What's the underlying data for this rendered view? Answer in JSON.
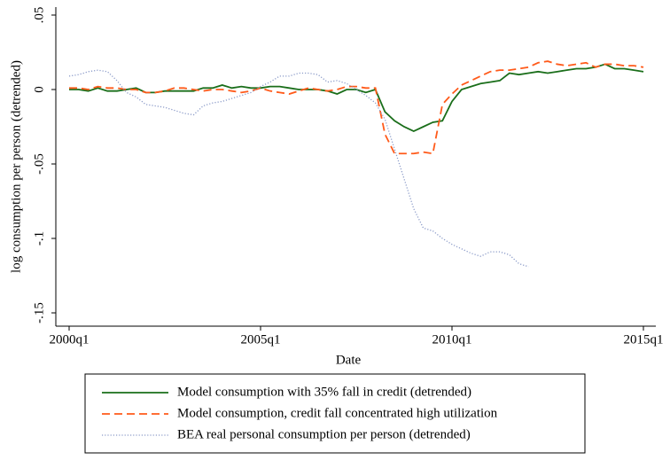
{
  "chart_data": {
    "type": "line",
    "x_label": "Date",
    "y_label": "log consumption per person (detrended)",
    "x": [
      "2000q1",
      "2000q2",
      "2000q3",
      "2000q4",
      "2001q1",
      "2001q2",
      "2001q3",
      "2001q4",
      "2002q1",
      "2002q2",
      "2002q3",
      "2002q4",
      "2003q1",
      "2003q2",
      "2003q3",
      "2003q4",
      "2004q1",
      "2004q2",
      "2004q3",
      "2004q4",
      "2005q1",
      "2005q2",
      "2005q3",
      "2005q4",
      "2006q1",
      "2006q2",
      "2006q3",
      "2006q4",
      "2007q1",
      "2007q2",
      "2007q3",
      "2007q4",
      "2008q1",
      "2008q2",
      "2008q3",
      "2008q4",
      "2009q1",
      "2009q2",
      "2009q3",
      "2009q4",
      "2010q1",
      "2010q2",
      "2010q3",
      "2010q4",
      "2011q1",
      "2011q2",
      "2011q3",
      "2011q4",
      "2012q1",
      "2012q2",
      "2012q3",
      "2012q4",
      "2013q1",
      "2013q2",
      "2013q3",
      "2013q4",
      "2014q1",
      "2014q2",
      "2014q3",
      "2014q4",
      "2015q1"
    ],
    "xlim": [
      "2000q1",
      "2015q1"
    ],
    "xticks": [
      "2000q1",
      "2005q1",
      "2010q1",
      "2015q1"
    ],
    "ylim": [
      -0.15,
      0.05
    ],
    "yticks": [
      {
        "value": -0.15,
        "label": "-.15"
      },
      {
        "value": -0.1,
        "label": "-.1"
      },
      {
        "value": -0.05,
        "label": "-.05"
      },
      0,
      {
        "value": 0.05,
        "label": ".05"
      }
    ],
    "series": [
      {
        "name": "Model consumption with 35% fall in credit (detrended)",
        "color": "#1a6e1a",
        "dash": "solid",
        "values": [
          0,
          0,
          -0.001,
          0.001,
          -0.001,
          -0.001,
          0,
          0.001,
          -0.002,
          -0.002,
          -0.001,
          -0.001,
          -0.001,
          -0.001,
          0.001,
          0.001,
          0.003,
          0.001,
          0.002,
          0.001,
          0.001,
          0.002,
          0.002,
          0.001,
          0,
          0,
          0,
          -0.001,
          -0.003,
          0,
          0,
          -0.002,
          0,
          -0.015,
          -0.021,
          -0.025,
          -0.028,
          -0.025,
          -0.022,
          -0.021,
          -0.008,
          0,
          0.002,
          0.004,
          0.005,
          0.006,
          0.011,
          0.01,
          0.011,
          0.012,
          0.011,
          0.012,
          0.013,
          0.014,
          0.014,
          0.015,
          0.017,
          0.014,
          0.014,
          0.013,
          0.012
        ]
      },
      {
        "name": "Model consumption, credit fall concentrated high utilization",
        "color": "#ff5a1a",
        "dash": "dashed",
        "values": [
          0.001,
          0.001,
          0,
          0.002,
          0.001,
          0.001,
          0,
          0,
          -0.002,
          -0.002,
          -0.001,
          0.001,
          0.001,
          0,
          -0.001,
          0,
          0,
          -0.001,
          -0.002,
          -0.001,
          0.001,
          -0.001,
          -0.002,
          -0.003,
          -0.001,
          0.001,
          0,
          -0.001,
          0,
          0.002,
          0.002,
          0.001,
          0.001,
          -0.03,
          -0.043,
          -0.043,
          -0.043,
          -0.042,
          -0.043,
          -0.01,
          -0.003,
          0.003,
          0.006,
          0.009,
          0.012,
          0.013,
          0.013,
          0.014,
          0.015,
          0.018,
          0.019,
          0.017,
          0.016,
          0.017,
          0.018,
          0.015,
          0.017,
          0.017,
          0.016,
          0.016,
          0.015
        ]
      },
      {
        "name": "BEA real personal consumption per person (detrended)",
        "color": "#8a9ac8",
        "dash": "dotted",
        "values": [
          0.009,
          0.01,
          0.012,
          0.013,
          0.012,
          0.006,
          -0.002,
          -0.005,
          -0.01,
          -0.011,
          -0.012,
          -0.014,
          -0.016,
          -0.017,
          -0.011,
          -0.009,
          -0.008,
          -0.006,
          -0.004,
          -0.002,
          0.002,
          0.005,
          0.009,
          0.009,
          0.011,
          0.011,
          0.01,
          0.005,
          0.006,
          0.004,
          0,
          -0.004,
          -0.009,
          -0.02,
          -0.04,
          -0.06,
          -0.08,
          -0.093,
          -0.095,
          -0.1,
          -0.104,
          -0.107,
          -0.11,
          -0.112,
          -0.109,
          -0.109,
          -0.111,
          -0.117,
          -0.119,
          null,
          null,
          null,
          null,
          null,
          null,
          null,
          null,
          null,
          null,
          null,
          null
        ]
      }
    ]
  }
}
